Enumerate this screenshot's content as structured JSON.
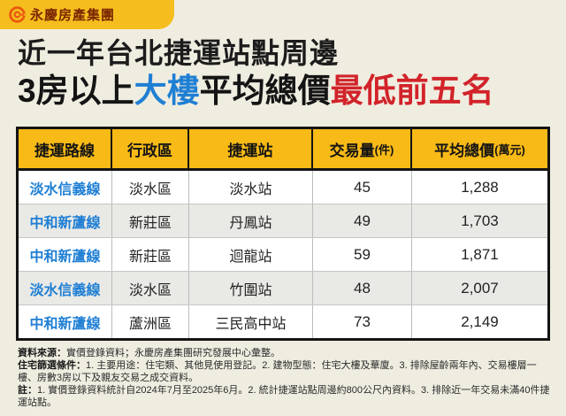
{
  "colors": {
    "background": "#efede0",
    "tab_yellow": "#f5be1e",
    "header_yellow": "#f8ba16",
    "accent_blue": "#1f7fd4",
    "accent_red": "#d2232a",
    "brand_text": "#7b2600",
    "logo_orange": "#e8590f",
    "row_alt": "#e9e9e6"
  },
  "logo": {
    "brand": "永慶房產集團",
    "icon": "yungching-logo-icon"
  },
  "title": {
    "line1": "近一年台北捷運站點周邊",
    "line2_segments": [
      {
        "text": "3房以上",
        "style": "black"
      },
      {
        "text": "大樓",
        "style": "blue"
      },
      {
        "text": "平均總價",
        "style": "black"
      },
      {
        "text": "最低前五名",
        "style": "red"
      }
    ]
  },
  "table": {
    "headers": [
      {
        "main": "捷運路線",
        "suffix": ""
      },
      {
        "main": "行政區",
        "suffix": ""
      },
      {
        "main": "捷運站",
        "suffix": ""
      },
      {
        "main": "交易量",
        "suffix": "(件)"
      },
      {
        "main": "平均總價",
        "suffix": "(萬元)"
      }
    ],
    "rows": [
      {
        "line": "淡水信義線",
        "district": "淡水區",
        "station": "淡水站",
        "volume": "45",
        "avg_price": "1,288"
      },
      {
        "line": "中和新蘆線",
        "district": "新莊區",
        "station": "丹鳳站",
        "volume": "49",
        "avg_price": "1,703"
      },
      {
        "line": "中和新蘆線",
        "district": "新莊區",
        "station": "迴龍站",
        "volume": "59",
        "avg_price": "1,871"
      },
      {
        "line": "淡水信義線",
        "district": "淡水區",
        "station": "竹圍站",
        "volume": "48",
        "avg_price": "2,007"
      },
      {
        "line": "中和新蘆線",
        "district": "蘆洲區",
        "station": "三民高中站",
        "volume": "73",
        "avg_price": "2,149"
      }
    ]
  },
  "footnotes": [
    {
      "label": "資料來源：",
      "text": "實價登錄資料；永慶房產集團研究發展中心彙整。"
    },
    {
      "label": "住宅篩選條件：",
      "text": "1. 主要用途：住宅類、其他見使用登記。2. 建物型態：住宅大樓及華廈。3. 排除屋齡兩年內、交易樓層一樓、房數3房以下及親友交易之成交資料。"
    },
    {
      "label": "註：",
      "text": "1. 實價登錄資料統計自2024年7月至2025年6月。2. 統計捷運站點周邊約800公尺內資料。3. 排除近一年交易未滿40件捷運站點。"
    }
  ],
  "chart_data": {
    "type": "table",
    "title": "近一年台北捷運站點周邊3房以上大樓平均總價最低前五名",
    "columns": [
      "捷運路線",
      "行政區",
      "捷運站",
      "交易量(件)",
      "平均總價(萬元)"
    ],
    "rows": [
      [
        "淡水信義線",
        "淡水區",
        "淡水站",
        45,
        1288
      ],
      [
        "中和新蘆線",
        "新莊區",
        "丹鳳站",
        49,
        1703
      ],
      [
        "中和新蘆線",
        "新莊區",
        "迴龍站",
        59,
        1871
      ],
      [
        "淡水信義線",
        "淡水區",
        "竹圍站",
        48,
        2007
      ],
      [
        "中和新蘆線",
        "蘆洲區",
        "三民高中站",
        73,
        2149
      ]
    ]
  }
}
